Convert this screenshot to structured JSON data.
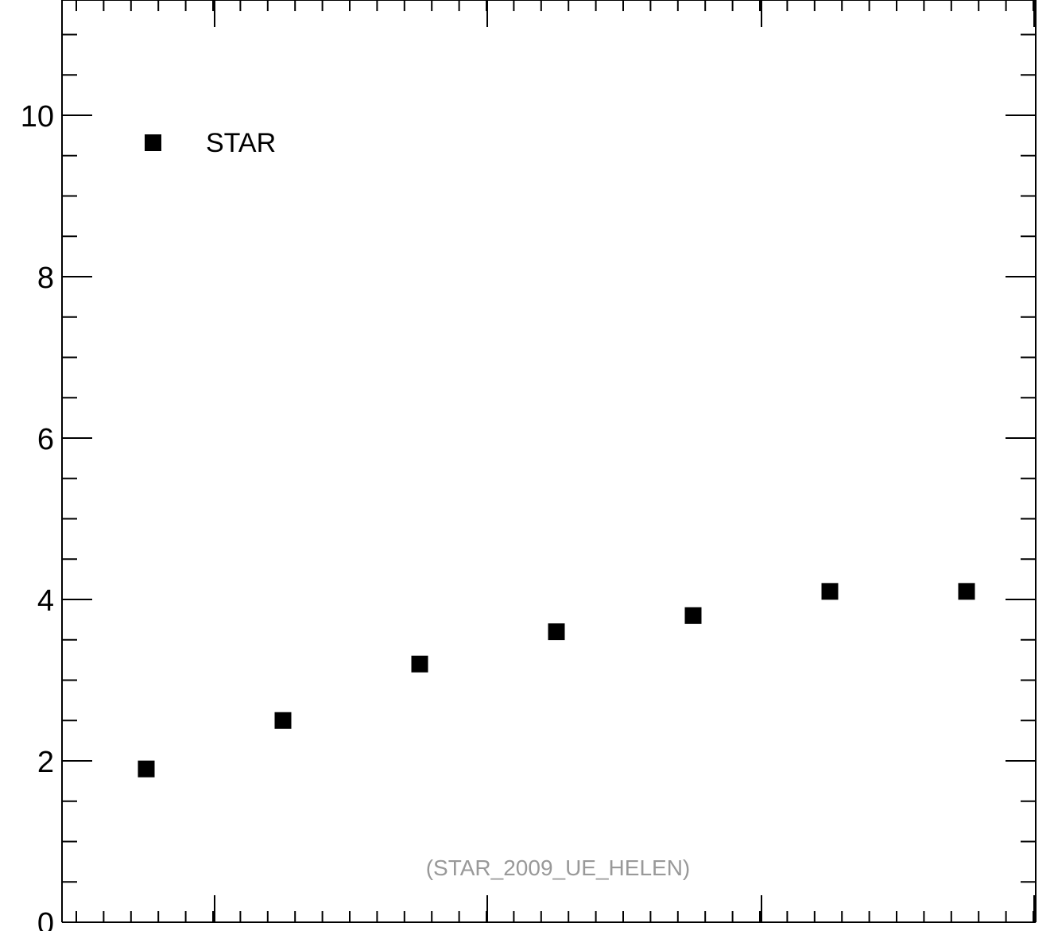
{
  "chart_data": {
    "type": "scatter",
    "title": "",
    "xlabel": "",
    "ylabel": "",
    "ylim": [
      0,
      11
    ],
    "yticks_major": [
      0,
      2,
      4,
      6,
      8,
      10
    ],
    "ytick_labels": [
      "0",
      "2",
      "4",
      "6",
      "8",
      "10"
    ],
    "grid": false,
    "legend_position": "top-left",
    "series": [
      {
        "name": "STAR",
        "marker": "square",
        "color": "#000000",
        "points": [
          {
            "x": 1,
            "y": 1.9
          },
          {
            "x": 2,
            "y": 2.5
          },
          {
            "x": 3,
            "y": 3.2
          },
          {
            "x": 4,
            "y": 3.6
          },
          {
            "x": 5,
            "y": 3.8
          },
          {
            "x": 6,
            "y": 4.1
          },
          {
            "x": 7,
            "y": 4.1
          }
        ]
      }
    ],
    "annotation": "(STAR_2009_UE_HELEN)"
  }
}
